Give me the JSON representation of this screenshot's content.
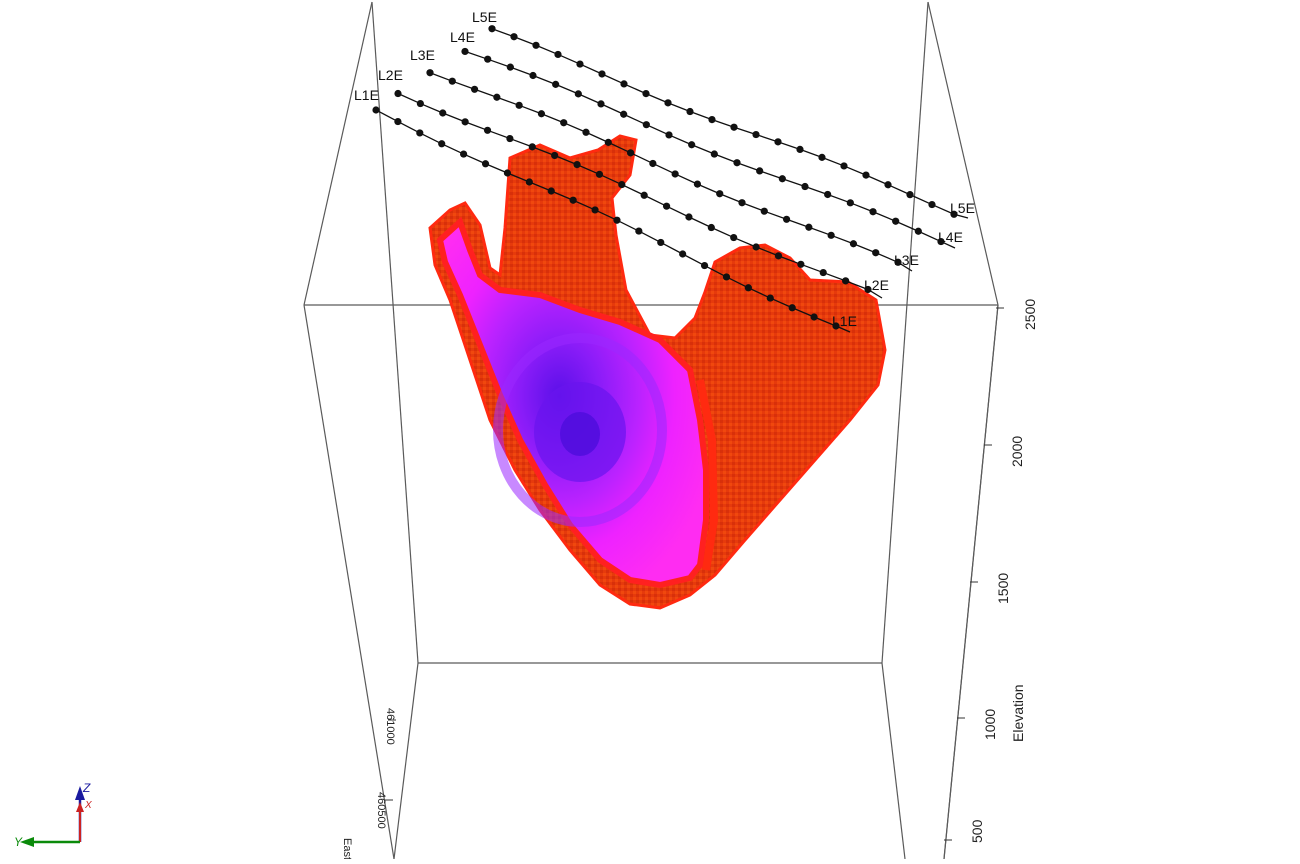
{
  "scene": {
    "survey_lines": [
      {
        "label": "L1E",
        "end_label": "L1E"
      },
      {
        "label": "L2E",
        "end_label": "L2E"
      },
      {
        "label": "L3E",
        "end_label": "L3E"
      },
      {
        "label": "L4E",
        "end_label": "L4E"
      },
      {
        "label": "L5E",
        "end_label": "L5E"
      }
    ],
    "elevation_axis": {
      "title": "Elevation",
      "ticks": [
        "2500",
        "2000",
        "1500",
        "1000",
        "500"
      ]
    },
    "easting_axis": {
      "title": "Easting",
      "ticks": [
        "461000",
        "460500"
      ]
    },
    "triad": {
      "z": "Z",
      "x": "X",
      "y": "Y"
    },
    "colors": {
      "body_outer": "#e8380a",
      "body_rim": "#ff1a10",
      "section_magenta": "#ff22ff",
      "section_violet": "#a020ff",
      "section_core": "#6a10ee",
      "triad_z": "#1a1aa0",
      "triad_x": "#cc2222",
      "triad_y": "#0a8a0a"
    }
  }
}
